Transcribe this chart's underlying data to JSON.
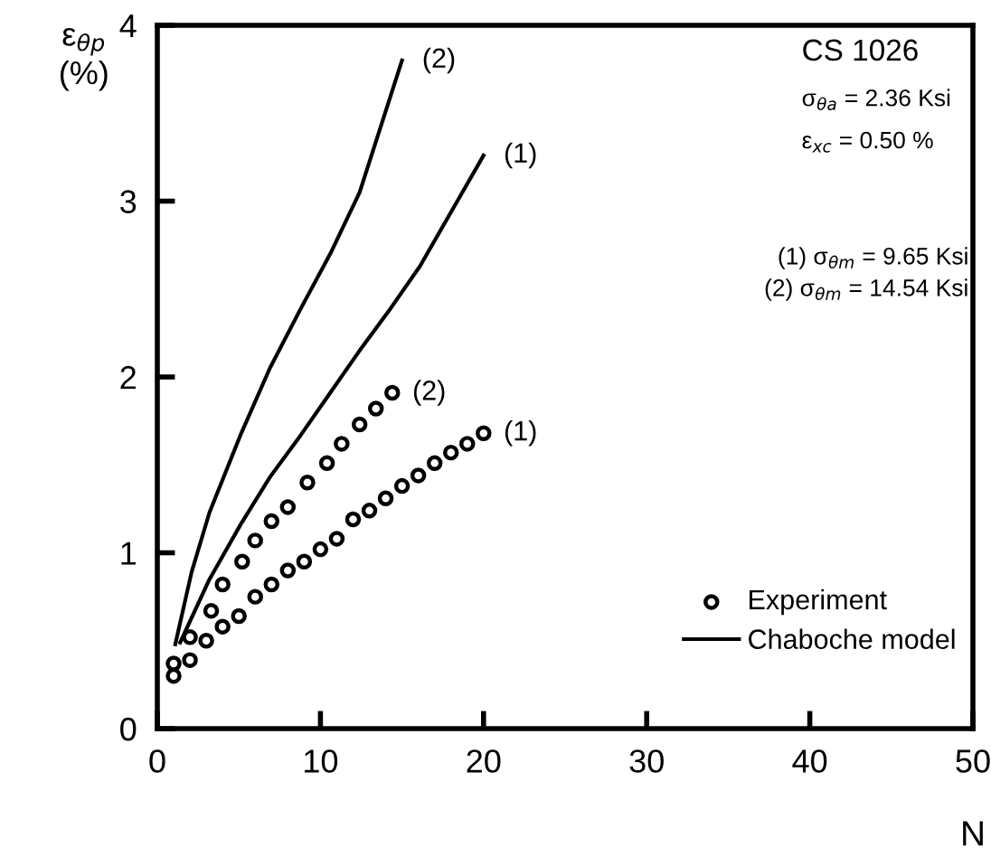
{
  "chart_data": {
    "type": "scatter",
    "xlabel": "N",
    "ylabel": "ε$_{θp}$\n(%)",
    "xlim": [
      0,
      50
    ],
    "ylim": [
      0,
      4
    ],
    "xticks": [
      0,
      10,
      20,
      30,
      40,
      50
    ],
    "yticks": [
      0,
      1,
      2,
      3,
      4
    ],
    "grid": false,
    "legend": "bottom right",
    "marker": "circle",
    "series": [
      {
        "name": "Experiment",
        "color": "#000000",
        "x": [
          1,
          2,
          3,
          4,
          5,
          6,
          7,
          8,
          9,
          10,
          11,
          12,
          13,
          14,
          15,
          16,
          17,
          18,
          19,
          20
        ],
        "values": [
          0.3,
          0.39,
          0.5,
          0.58,
          0.64,
          0.75,
          0.82,
          0.9,
          0.95,
          1.02,
          1.08,
          1.19,
          1.24,
          1.31,
          1.38,
          1.44,
          1.51,
          1.57,
          1.62,
          1.68
        ]
      },
      {
        "color": "#000000",
        "x": [
          1,
          2,
          3.3,
          4,
          5.2,
          6,
          7,
          8,
          9.2,
          10.4,
          11.3,
          12.4,
          13.4,
          14.4
        ],
        "values": [
          0.37,
          0.52,
          0.67,
          0.82,
          0.95,
          1.07,
          1.18,
          1.26,
          1.4,
          1.51,
          1.62,
          1.73,
          1.82,
          1.91
        ]
      },
      {
        "name": "Chaboche model",
        "type": "line",
        "color": "#000000",
        "line_style": "solid",
        "marker": "none",
        "x": [
          1.4,
          3.2,
          5.1,
          6.9,
          8.8,
          10.6,
          12.4,
          14.3,
          16.1,
          20
        ],
        "values": [
          0.49,
          0.85,
          1.16,
          1.43,
          1.67,
          1.91,
          2.15,
          2.39,
          2.63,
          3.26
        ]
      },
      {
        "type": "line",
        "color": "#000000",
        "line_style": "solid",
        "marker": "none",
        "x": [
          1.1,
          2.1,
          3.2,
          5.1,
          6.9,
          8.8,
          10.6,
          12.4,
          15
        ],
        "values": [
          0.48,
          0.89,
          1.23,
          1.67,
          2.05,
          2.39,
          2.7,
          3.05,
          3.8
        ]
      }
    ],
    "annotations": [
      {
        "text": "(2)",
        "x": 15,
        "y": 3.8
      },
      {
        "text": "(1)",
        "x": 20,
        "y": 3.26
      },
      {
        "text": "(2)",
        "x": 14.4,
        "y": 1.91
      },
      {
        "text": "(1)",
        "x": 20,
        "y": 1.68
      },
      "CS 1026",
      "σ$_{θa}$ = 2.36 Ksi",
      "ε$_{xc}$ = 0.50 %",
      "(1) σ$_{θm}$ = 9.65 Ksi",
      "(2) σ$_{θm}$ = 14.54 Ksi"
    ]
  }
}
